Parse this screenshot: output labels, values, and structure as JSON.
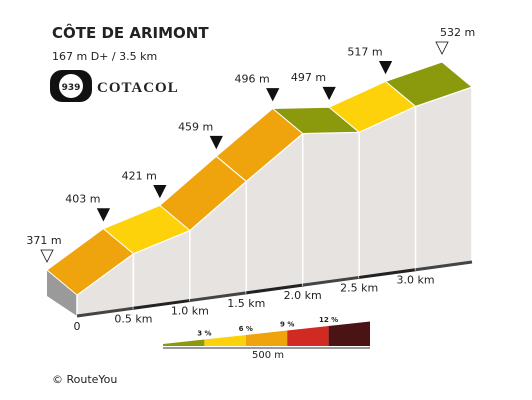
{
  "chart_data": {
    "type": "profile",
    "title": "CÔTE DE ARIMONT",
    "subtitle": "167 m D+ / 3.5 km",
    "logo": {
      "number": "939",
      "name": "COTACOL"
    },
    "x": [
      0,
      0.5,
      1,
      1.5,
      2,
      2.5,
      3,
      3.5
    ],
    "values": [
      371,
      403,
      421,
      459,
      496,
      497,
      517,
      532
    ],
    "value_labels": [
      "371 m",
      "403 m",
      "421 m",
      "459 m",
      "496 m",
      "497 m",
      "517 m",
      "532 m"
    ],
    "colors": [
      "#efa30c",
      "#fdd20a",
      "#efa30c",
      "#efa30c",
      "#8b9a0c",
      "#fdd20a",
      "#8b9a0c"
    ],
    "xlim": [
      0,
      3.5
    ],
    "xticks": [
      0,
      {
        "value": 0.5,
        "label": "0.5 km"
      },
      {
        "value": 1,
        "label": "1.0 km"
      },
      {
        "value": 1.5,
        "label": "1.5 km"
      },
      {
        "value": 2,
        "label": "2.0 km"
      },
      {
        "value": 2.5,
        "label": "2.5 km"
      },
      {
        "value": 3,
        "label": "3.0 km"
      }
    ],
    "legend": {
      "items": [
        {
          "label": "3 %",
          "color": "#8b9a0c"
        },
        {
          "label": "6 %",
          "color": "#fdd20a"
        },
        {
          "label": "9 %",
          "color": "#efa30c"
        },
        {
          "label": "12 %",
          "color": "#d02a22"
        },
        {
          "label": "",
          "color": "#4a1414"
        }
      ],
      "scale_label": "500 m"
    },
    "credit": "© RouteYou"
  }
}
